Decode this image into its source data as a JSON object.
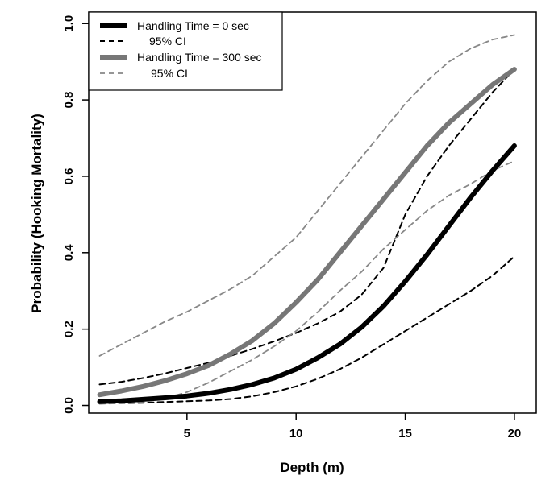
{
  "chart_data": {
    "type": "line",
    "xlabel": "Depth (m)",
    "ylabel": "Probability (Hooking Mortality)",
    "xlim": [
      0.5,
      21.0
    ],
    "ylim": [
      -0.02,
      1.03
    ],
    "x_ticks": [
      "5",
      "10",
      "15",
      "20"
    ],
    "y_ticks": [
      "0.0",
      "0.2",
      "0.4",
      "0.6",
      "0.8",
      "1.0"
    ],
    "grid": false,
    "legend_position": "top-left",
    "series": [
      {
        "name": "Handling Time =   0 sec",
        "style": "thick-solid",
        "color": "#000000",
        "x": [
          1,
          2,
          3,
          4,
          5,
          6,
          7,
          8,
          9,
          10,
          11,
          12,
          13,
          14,
          15,
          16,
          17,
          18,
          19,
          20
        ],
        "y": [
          0.01,
          0.012,
          0.016,
          0.02,
          0.025,
          0.032,
          0.042,
          0.055,
          0.072,
          0.095,
          0.125,
          0.16,
          0.205,
          0.26,
          0.325,
          0.395,
          0.47,
          0.545,
          0.615,
          0.68
        ]
      },
      {
        "name": "95% CI",
        "legend_label": "95% CI",
        "style": "dashed",
        "color": "#000000",
        "x": [
          1,
          2,
          3,
          4,
          5,
          6,
          7,
          8,
          9,
          10,
          11,
          12,
          13,
          14,
          15,
          16,
          17,
          18,
          19,
          20
        ],
        "y": [
          0.005,
          0.006,
          0.007,
          0.009,
          0.011,
          0.013,
          0.017,
          0.024,
          0.035,
          0.05,
          0.07,
          0.095,
          0.125,
          0.16,
          0.195,
          0.23,
          0.265,
          0.3,
          0.34,
          0.39
        ]
      },
      {
        "name": "95% CI",
        "style": "dashed",
        "color": "#000000",
        "x": [
          1,
          2,
          3,
          4,
          5,
          6,
          7,
          8,
          9,
          10,
          11,
          12,
          13,
          14,
          15,
          16,
          17,
          18,
          19,
          20
        ],
        "y": [
          0.055,
          0.062,
          0.072,
          0.084,
          0.098,
          0.112,
          0.13,
          0.148,
          0.168,
          0.19,
          0.215,
          0.245,
          0.29,
          0.36,
          0.5,
          0.6,
          0.68,
          0.75,
          0.82,
          0.88
        ]
      },
      {
        "name": "Handling Time = 300 sec",
        "style": "thick-solid",
        "color": "#777777",
        "x": [
          1,
          2,
          3,
          4,
          5,
          6,
          7,
          8,
          9,
          10,
          11,
          12,
          13,
          14,
          15,
          16,
          17,
          18,
          19,
          20
        ],
        "y": [
          0.028,
          0.038,
          0.05,
          0.065,
          0.083,
          0.105,
          0.135,
          0.17,
          0.215,
          0.27,
          0.33,
          0.4,
          0.47,
          0.54,
          0.61,
          0.68,
          0.74,
          0.79,
          0.84,
          0.88
        ]
      },
      {
        "name": "95% CI",
        "legend_label": "95% CI",
        "style": "dashed",
        "color": "#888888",
        "x": [
          1,
          2,
          3,
          4,
          5,
          6,
          7,
          8,
          9,
          10,
          11,
          12,
          13,
          14,
          15,
          16,
          17,
          18,
          19,
          20
        ],
        "y": [
          0.13,
          0.16,
          0.19,
          0.22,
          0.245,
          0.275,
          0.305,
          0.34,
          0.39,
          0.44,
          0.51,
          0.58,
          0.65,
          0.72,
          0.79,
          0.85,
          0.9,
          0.935,
          0.958,
          0.97
        ]
      },
      {
        "name": "95% CI",
        "style": "dashed",
        "color": "#888888",
        "x": [
          1,
          2,
          3,
          4,
          5,
          6,
          7,
          8,
          9,
          10,
          11,
          12,
          13,
          14,
          15,
          16,
          17,
          18,
          19,
          20
        ],
        "y": [
          0.004,
          0.006,
          0.01,
          0.018,
          0.035,
          0.06,
          0.09,
          0.12,
          0.155,
          0.195,
          0.245,
          0.3,
          0.35,
          0.41,
          0.46,
          0.51,
          0.55,
          0.58,
          0.615,
          0.64
        ]
      }
    ]
  }
}
